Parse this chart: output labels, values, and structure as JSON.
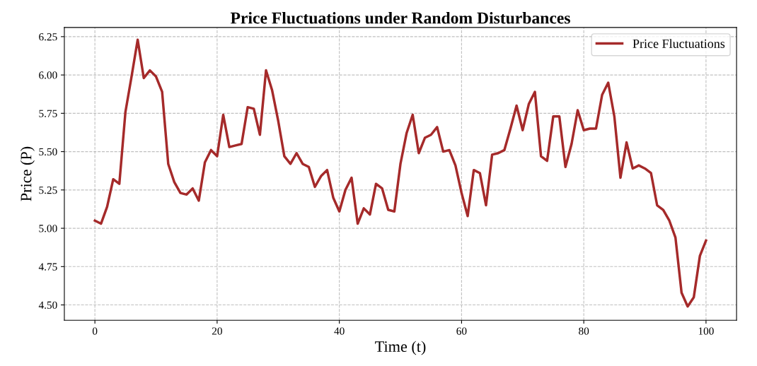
{
  "chart_data": {
    "type": "line",
    "title": "Price Fluctuations under Random Disturbances",
    "xlabel": "Time (t)",
    "ylabel": "Price (P)",
    "x": [
      0,
      1,
      2,
      3,
      4,
      5,
      6,
      7,
      8,
      9,
      10,
      11,
      12,
      13,
      14,
      15,
      16,
      17,
      18,
      19,
      20,
      21,
      22,
      23,
      24,
      25,
      26,
      27,
      28,
      29,
      30,
      31,
      32,
      33,
      34,
      35,
      36,
      37,
      38,
      39,
      40,
      41,
      42,
      43,
      44,
      45,
      46,
      47,
      48,
      49,
      50,
      51,
      52,
      53,
      54,
      55,
      56,
      57,
      58,
      59,
      60,
      61,
      62,
      63,
      64,
      65,
      66,
      67,
      68,
      69,
      70,
      71,
      72,
      73,
      74,
      75,
      76,
      77,
      78,
      79,
      80,
      81,
      82,
      83,
      84,
      85,
      86,
      87,
      88,
      89,
      90,
      91,
      92,
      93,
      94,
      95,
      96,
      97,
      98,
      99,
      100
    ],
    "series": [
      {
        "name": "Price Fluctuations",
        "color": "#a52a2a",
        "values": [
          5.05,
          5.03,
          5.14,
          5.32,
          5.29,
          5.76,
          5.99,
          6.23,
          5.98,
          6.03,
          5.99,
          5.89,
          5.42,
          5.3,
          5.23,
          5.22,
          5.26,
          5.18,
          5.43,
          5.51,
          5.47,
          5.74,
          5.53,
          5.54,
          5.55,
          5.79,
          5.78,
          5.61,
          6.03,
          5.9,
          5.7,
          5.47,
          5.42,
          5.49,
          5.42,
          5.4,
          5.27,
          5.34,
          5.38,
          5.2,
          5.11,
          5.25,
          5.33,
          5.03,
          5.13,
          5.09,
          5.29,
          5.26,
          5.12,
          5.11,
          5.42,
          5.62,
          5.74,
          5.49,
          5.59,
          5.61,
          5.66,
          5.5,
          5.51,
          5.41,
          5.23,
          5.08,
          5.38,
          5.36,
          5.15,
          5.48,
          5.49,
          5.51,
          5.65,
          5.8,
          5.64,
          5.81,
          5.89,
          5.47,
          5.44,
          5.73,
          5.73,
          5.4,
          5.55,
          5.77,
          5.64,
          5.65,
          5.65,
          5.87,
          5.95,
          5.73,
          5.33,
          5.56,
          5.39,
          5.41,
          5.39,
          5.36,
          5.15,
          5.12,
          5.05,
          4.94,
          4.58,
          4.49,
          4.55,
          4.82,
          4.92
        ]
      }
    ],
    "xlim": [
      -5,
      105
    ],
    "ylim": [
      4.4,
      6.31
    ],
    "xticks": [
      0,
      20,
      40,
      60,
      80,
      100
    ],
    "yticks": [
      {
        "value": 4.5,
        "label": "4.50"
      },
      {
        "value": 4.75,
        "label": "4.75"
      },
      {
        "value": 5.0,
        "label": "5.00"
      },
      {
        "value": 5.25,
        "label": "5.25"
      },
      {
        "value": 5.5,
        "label": "5.50"
      },
      {
        "value": 5.75,
        "label": "5.75"
      },
      {
        "value": 6.0,
        "label": "6.00"
      },
      {
        "value": 6.25,
        "label": "6.25"
      }
    ],
    "grid": true,
    "legend": "top right",
    "line_style": "solid",
    "marker": "none"
  }
}
